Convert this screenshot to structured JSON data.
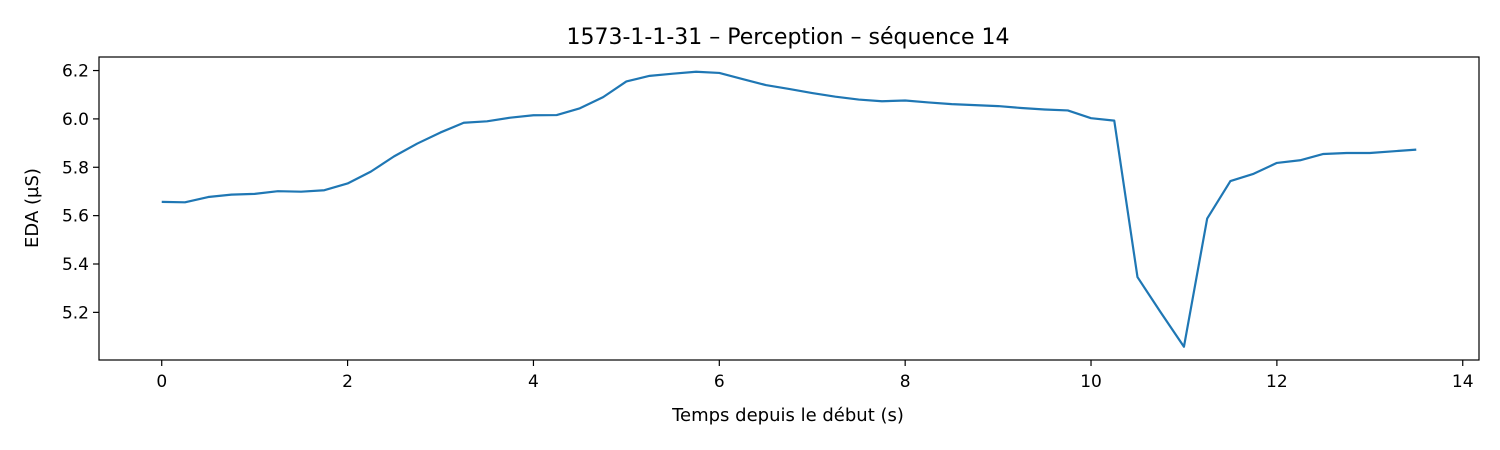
{
  "chart_data": {
    "type": "line",
    "title": "1573-1-1-31 – Perception – séquence 14",
    "xlabel": "Temps depuis le début (s)",
    "ylabel": "EDA (µS)",
    "xlim": [
      -0.675,
      14.175
    ],
    "ylim": [
      5.003,
      6.256
    ],
    "xticks": [
      0,
      2,
      4,
      6,
      8,
      10,
      12,
      14
    ],
    "xtick_labels": [
      "0",
      "2",
      "4",
      "6",
      "8",
      "10",
      "12",
      "14"
    ],
    "yticks": [
      5.2,
      5.4,
      5.6,
      5.8,
      6.0,
      6.2
    ],
    "ytick_labels": [
      "5.2",
      "5.4",
      "5.6",
      "5.8",
      "6.0",
      "6.2"
    ],
    "grid": false,
    "series": [
      {
        "color": "#1f77b4",
        "x": [
          0,
          0.25,
          0.5,
          0.75,
          1.0,
          1.25,
          1.5,
          1.75,
          2.0,
          2.25,
          2.5,
          2.75,
          3.0,
          3.25,
          3.5,
          3.75,
          4.0,
          4.25,
          4.5,
          4.75,
          5.0,
          5.25,
          5.5,
          5.75,
          6.0,
          6.25,
          6.5,
          6.75,
          7.0,
          7.25,
          7.5,
          7.75,
          8.0,
          8.25,
          8.5,
          8.75,
          9.0,
          9.25,
          9.5,
          9.75,
          10.0,
          10.25,
          10.5,
          10.75,
          11.0,
          11.25,
          11.5,
          11.75,
          12.0,
          12.25,
          12.5,
          12.75,
          13.0,
          13.25,
          13.5
        ],
        "y": [
          5.657,
          5.655,
          5.677,
          5.687,
          5.69,
          5.701,
          5.699,
          5.705,
          5.733,
          5.782,
          5.845,
          5.898,
          5.944,
          5.984,
          5.99,
          6.005,
          6.015,
          6.016,
          6.044,
          6.09,
          6.155,
          6.178,
          6.187,
          6.195,
          6.19,
          6.165,
          6.14,
          6.124,
          6.107,
          6.092,
          6.08,
          6.073,
          6.076,
          6.068,
          6.061,
          6.057,
          6.053,
          6.045,
          6.039,
          6.035,
          6.003,
          5.993,
          5.346,
          5.2,
          5.058,
          5.588,
          5.743,
          5.773,
          5.818,
          5.829,
          5.855,
          5.859,
          5.859,
          5.866,
          5.873
        ]
      }
    ]
  }
}
